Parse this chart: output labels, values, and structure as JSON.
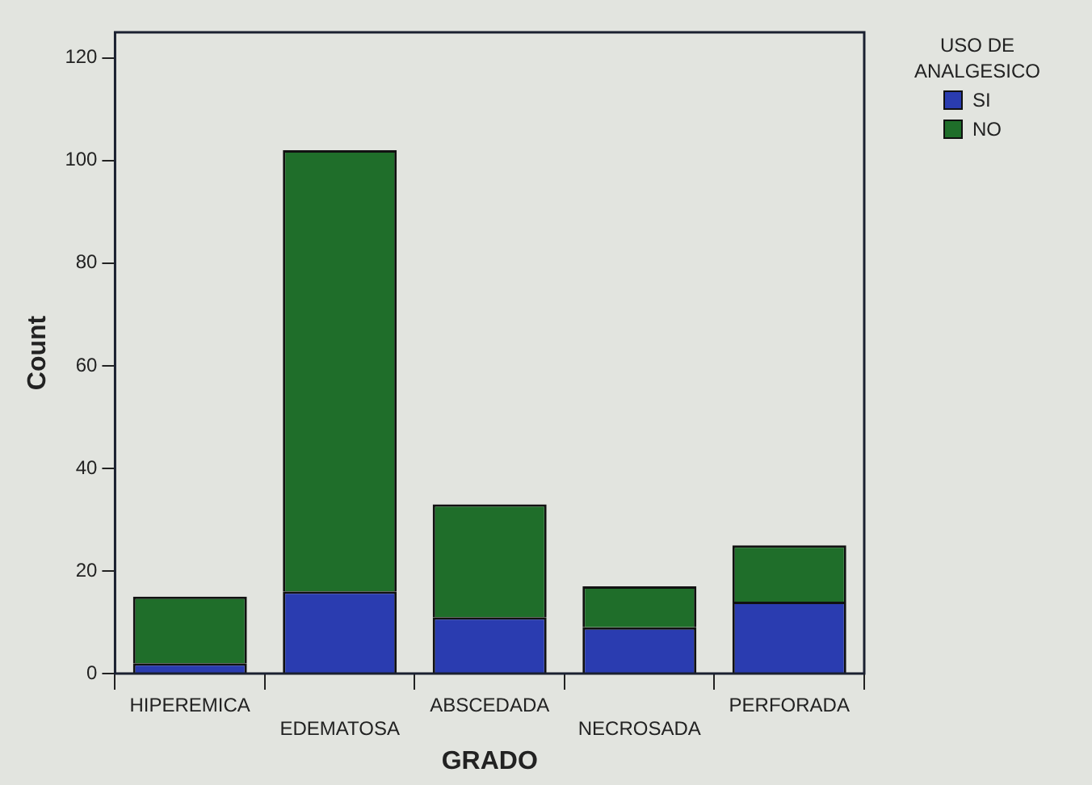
{
  "chart_data": {
    "type": "bar",
    "stacked": true,
    "xlabel": "GRADO",
    "ylabel": "Count",
    "legend_title": "USO DE ANALGESICO",
    "legend": "top right",
    "categories": [
      "HIPEREMICA",
      "EDEMATOSA",
      "ABSCEDADA",
      "NECROSADA",
      "PERFORADA"
    ],
    "series": [
      {
        "name": "SI",
        "color": "#2a3cb0",
        "values": [
          2,
          16,
          11,
          9,
          14
        ]
      },
      {
        "name": "NO",
        "color": "#1f6e2a",
        "values": [
          13,
          86,
          22,
          8,
          11
        ]
      }
    ],
    "ylim": [
      0,
      125
    ],
    "yticks": [
      0,
      20,
      40,
      60,
      80,
      100,
      120
    ],
    "grid": false
  }
}
